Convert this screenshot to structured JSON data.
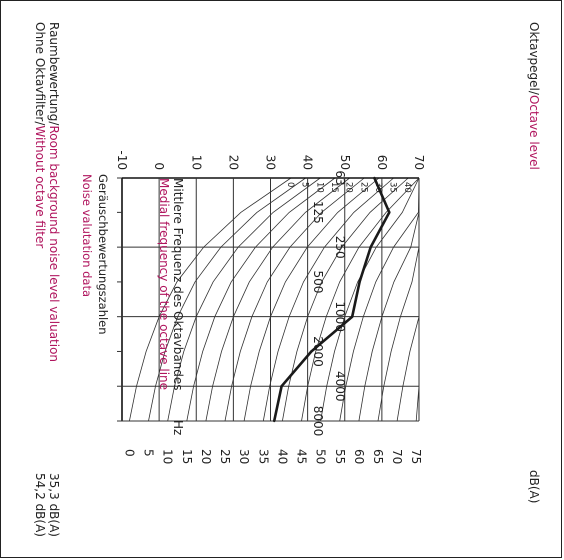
{
  "chart_data": {
    "type": "line",
    "ylabel": "Oktavpegel",
    "ylabel_en": "Octave level",
    "y_unit": "dB",
    "xlabel": "Mittlere Frequenz des Oktavbandes",
    "xlabel_en": "Medial frequency of the octave line",
    "x_unit": "Hz",
    "x": [
      63,
      125,
      250,
      500,
      1000,
      2000,
      4000,
      8000
    ],
    "x_tick_labels": [
      "63",
      "125",
      "250",
      "500",
      "1000",
      "2000",
      "4000",
      "8000"
    ],
    "y_ticks": [
      -10,
      0,
      10,
      20,
      30,
      40,
      50,
      60,
      70
    ],
    "ylim": [
      -10,
      70
    ],
    "series": [
      {
        "values": [
          58,
          62,
          57,
          54,
          52,
          41,
          33,
          31
        ]
      }
    ],
    "nr_curves": {
      "levels": [
        0,
        5,
        10,
        15,
        20,
        25,
        30,
        35,
        40,
        45,
        50,
        55,
        60,
        65,
        70,
        75
      ],
      "top_labels": [
        "0",
        "5",
        "10",
        "15",
        "20",
        "25",
        "30",
        "35",
        "40"
      ],
      "scale_labels": [
        "0",
        "5",
        "10",
        "15",
        "20",
        "25",
        "30",
        "35",
        "40",
        "45",
        "50",
        "55",
        "60",
        "65",
        "70",
        "75"
      ],
      "scale_unit": "dB(A)",
      "scale_title": "Geräuschbewertungszahlen",
      "scale_title_en": "Noise valutation data"
    },
    "annotations": [
      {
        "label": "Raumbewertung",
        "label_en": "Room background noise level valuation",
        "value": "35,3 dB(A)"
      },
      {
        "label": "Ohne Oktavfilter",
        "label_en": "Without octave filter",
        "value": "54,2 dB(A)"
      }
    ],
    "grid": true
  }
}
